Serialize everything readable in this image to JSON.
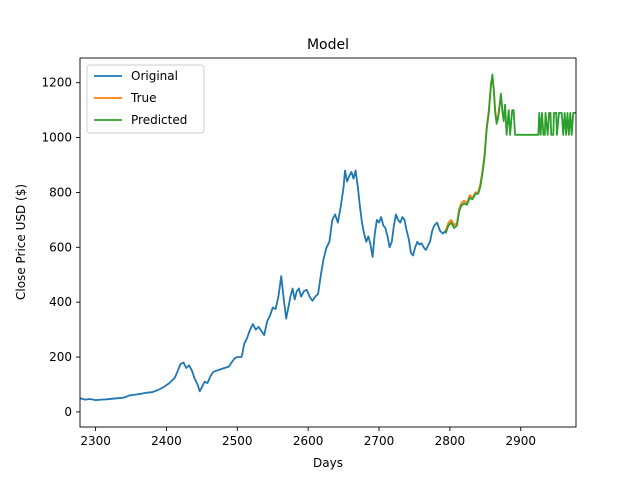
{
  "chart_data": {
    "type": "line",
    "title": "Model",
    "xlabel": "Days",
    "ylabel": "Close Price USD ($)",
    "xlim": [
      2278,
      2978
    ],
    "ylim": [
      -55,
      1290
    ],
    "x_ticks": [
      2300,
      2400,
      2500,
      2600,
      2700,
      2800,
      2900
    ],
    "y_ticks": [
      0,
      200,
      400,
      600,
      800,
      1000,
      1200
    ],
    "grid": false,
    "legend_position": "top-left",
    "series": [
      {
        "name": "Original",
        "color": "#1f77b4",
        "points": [
          [
            2278,
            50
          ],
          [
            2285,
            45
          ],
          [
            2292,
            47
          ],
          [
            2300,
            43
          ],
          [
            2308,
            45
          ],
          [
            2316,
            46
          ],
          [
            2324,
            48
          ],
          [
            2332,
            50
          ],
          [
            2340,
            52
          ],
          [
            2348,
            60
          ],
          [
            2356,
            63
          ],
          [
            2364,
            66
          ],
          [
            2372,
            70
          ],
          [
            2380,
            72
          ],
          [
            2388,
            80
          ],
          [
            2396,
            90
          ],
          [
            2404,
            105
          ],
          [
            2412,
            125
          ],
          [
            2416,
            150
          ],
          [
            2420,
            175
          ],
          [
            2424,
            180
          ],
          [
            2428,
            160
          ],
          [
            2432,
            170
          ],
          [
            2436,
            150
          ],
          [
            2440,
            120
          ],
          [
            2444,
            100
          ],
          [
            2447,
            75
          ],
          [
            2450,
            90
          ],
          [
            2454,
            110
          ],
          [
            2458,
            105
          ],
          [
            2462,
            130
          ],
          [
            2466,
            145
          ],
          [
            2470,
            150
          ],
          [
            2476,
            155
          ],
          [
            2482,
            160
          ],
          [
            2488,
            165
          ],
          [
            2492,
            180
          ],
          [
            2496,
            195
          ],
          [
            2500,
            200
          ],
          [
            2506,
            200
          ],
          [
            2510,
            250
          ],
          [
            2514,
            270
          ],
          [
            2518,
            300
          ],
          [
            2522,
            320
          ],
          [
            2526,
            300
          ],
          [
            2530,
            310
          ],
          [
            2534,
            295
          ],
          [
            2538,
            280
          ],
          [
            2542,
            330
          ],
          [
            2546,
            350
          ],
          [
            2550,
            380
          ],
          [
            2554,
            375
          ],
          [
            2558,
            420
          ],
          [
            2562,
            495
          ],
          [
            2566,
            400
          ],
          [
            2569,
            340
          ],
          [
            2572,
            380
          ],
          [
            2575,
            420
          ],
          [
            2578,
            450
          ],
          [
            2581,
            410
          ],
          [
            2584,
            440
          ],
          [
            2587,
            450
          ],
          [
            2590,
            420
          ],
          [
            2594,
            440
          ],
          [
            2598,
            445
          ],
          [
            2602,
            420
          ],
          [
            2606,
            405
          ],
          [
            2610,
            420
          ],
          [
            2614,
            430
          ],
          [
            2618,
            500
          ],
          [
            2622,
            560
          ],
          [
            2626,
            600
          ],
          [
            2630,
            620
          ],
          [
            2634,
            700
          ],
          [
            2638,
            720
          ],
          [
            2642,
            690
          ],
          [
            2646,
            750
          ],
          [
            2650,
            820
          ],
          [
            2652,
            880
          ],
          [
            2655,
            840
          ],
          [
            2658,
            860
          ],
          [
            2661,
            875
          ],
          [
            2664,
            850
          ],
          [
            2667,
            880
          ],
          [
            2670,
            820
          ],
          [
            2673,
            750
          ],
          [
            2676,
            690
          ],
          [
            2679,
            650
          ],
          [
            2682,
            620
          ],
          [
            2685,
            640
          ],
          [
            2688,
            610
          ],
          [
            2691,
            565
          ],
          [
            2694,
            650
          ],
          [
            2697,
            700
          ],
          [
            2700,
            690
          ],
          [
            2703,
            710
          ],
          [
            2706,
            680
          ],
          [
            2709,
            670
          ],
          [
            2712,
            640
          ],
          [
            2715,
            600
          ],
          [
            2718,
            620
          ],
          [
            2721,
            680
          ],
          [
            2724,
            720
          ],
          [
            2727,
            700
          ],
          [
            2730,
            690
          ],
          [
            2733,
            710
          ],
          [
            2736,
            700
          ],
          [
            2739,
            660
          ],
          [
            2742,
            630
          ],
          [
            2745,
            580
          ],
          [
            2748,
            570
          ],
          [
            2751,
            600
          ],
          [
            2754,
            620
          ],
          [
            2757,
            610
          ],
          [
            2760,
            615
          ],
          [
            2763,
            600
          ],
          [
            2766,
            590
          ],
          [
            2769,
            605
          ],
          [
            2772,
            620
          ],
          [
            2775,
            660
          ],
          [
            2778,
            680
          ],
          [
            2782,
            690
          ],
          [
            2786,
            660
          ],
          [
            2790,
            650
          ],
          [
            2794,
            660
          ]
        ]
      },
      {
        "name": "True",
        "color": "#ff7f0e",
        "points": [
          [
            2794,
            660
          ],
          [
            2798,
            690
          ],
          [
            2802,
            700
          ],
          [
            2806,
            680
          ],
          [
            2810,
            690
          ],
          [
            2813,
            740
          ],
          [
            2816,
            760
          ],
          [
            2820,
            770
          ],
          [
            2824,
            760
          ],
          [
            2828,
            790
          ],
          [
            2832,
            780
          ],
          [
            2836,
            800
          ],
          [
            2840,
            800
          ],
          [
            2843,
            830
          ],
          [
            2846,
            880
          ],
          [
            2849,
            940
          ],
          [
            2852,
            1040
          ],
          [
            2855,
            1100
          ],
          [
            2858,
            1200
          ],
          [
            2860,
            1220
          ],
          [
            2862,
            1180
          ],
          [
            2864,
            1100
          ],
          [
            2866,
            1060
          ],
          [
            2868,
            1080
          ],
          [
            2870,
            1120
          ],
          [
            2872,
            1150
          ],
          [
            2875,
            1080
          ]
        ]
      },
      {
        "name": "Predicted",
        "color": "#2ca02c",
        "points": [
          [
            2794,
            650
          ],
          [
            2798,
            680
          ],
          [
            2802,
            690
          ],
          [
            2806,
            670
          ],
          [
            2810,
            680
          ],
          [
            2813,
            730
          ],
          [
            2816,
            750
          ],
          [
            2820,
            760
          ],
          [
            2824,
            755
          ],
          [
            2828,
            780
          ],
          [
            2832,
            775
          ],
          [
            2836,
            795
          ],
          [
            2840,
            795
          ],
          [
            2843,
            820
          ],
          [
            2846,
            870
          ],
          [
            2849,
            930
          ],
          [
            2852,
            1030
          ],
          [
            2855,
            1090
          ],
          [
            2858,
            1190
          ],
          [
            2860,
            1230
          ],
          [
            2862,
            1170
          ],
          [
            2864,
            1090
          ],
          [
            2866,
            1050
          ],
          [
            2868,
            1070
          ],
          [
            2870,
            1110
          ],
          [
            2872,
            1160
          ],
          [
            2874,
            1100
          ],
          [
            2876,
            1060
          ],
          [
            2878,
            1120
          ],
          [
            2880,
            1010
          ],
          [
            2883,
            1100
          ],
          [
            2885,
            1010
          ],
          [
            2888,
            1100
          ],
          [
            2890,
            1100
          ],
          [
            2892,
            1010
          ],
          [
            2925,
            1010
          ],
          [
            2926,
            1090
          ],
          [
            2928,
            1010
          ],
          [
            2930,
            1090
          ],
          [
            2932,
            1010
          ],
          [
            2934,
            1010
          ],
          [
            2935,
            1090
          ],
          [
            2938,
            1010
          ],
          [
            2940,
            1090
          ],
          [
            2942,
            1090
          ],
          [
            2943,
            1010
          ],
          [
            2946,
            1010
          ],
          [
            2947,
            1090
          ],
          [
            2950,
            1090
          ],
          [
            2951,
            1010
          ],
          [
            2954,
            1090
          ],
          [
            2958,
            1090
          ],
          [
            2960,
            1010
          ],
          [
            2962,
            1090
          ],
          [
            2964,
            1010
          ],
          [
            2966,
            1090
          ],
          [
            2968,
            1010
          ],
          [
            2970,
            1090
          ],
          [
            2972,
            1010
          ],
          [
            2974,
            1090
          ],
          [
            2978,
            1090
          ]
        ]
      }
    ]
  }
}
